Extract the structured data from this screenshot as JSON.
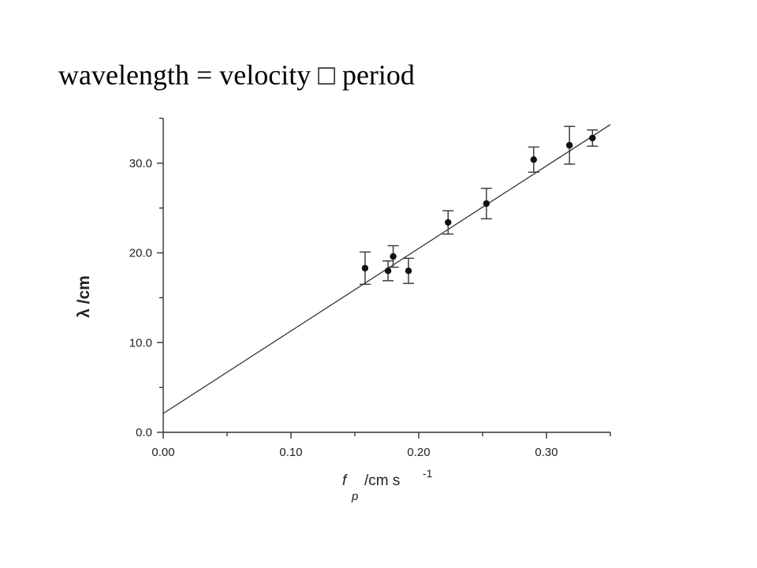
{
  "slide": {
    "title": "wavelength = velocity □ period"
  },
  "chart_data": {
    "type": "scatter",
    "title": "",
    "xlabel_main": "f",
    "xlabel_sub": "p",
    "xlabel_unit": "/cm s",
    "xlabel_sup": "-1",
    "ylabel": "λ /cm",
    "xlim": [
      0.0,
      0.35
    ],
    "ylim": [
      0.0,
      35.0
    ],
    "x_ticks": [
      "0.00",
      "0.10",
      "0.20",
      "0.30"
    ],
    "y_ticks": [
      "0.0",
      "10.0",
      "20.0",
      "30.0"
    ],
    "grid": false,
    "legend": "none",
    "series": [
      {
        "x": [
          0.158,
          0.176,
          0.18,
          0.192,
          0.223,
          0.253,
          0.29,
          0.318,
          0.336
        ],
        "y": [
          18.3,
          18.0,
          19.6,
          18.0,
          23.4,
          25.5,
          30.4,
          32.0,
          32.8
        ],
        "yerr": [
          1.8,
          1.1,
          1.2,
          1.4,
          1.3,
          1.7,
          1.4,
          2.1,
          0.9
        ]
      }
    ],
    "fit_line": {
      "x": [
        0.0,
        0.35
      ],
      "y": [
        2.1,
        34.3
      ]
    }
  }
}
